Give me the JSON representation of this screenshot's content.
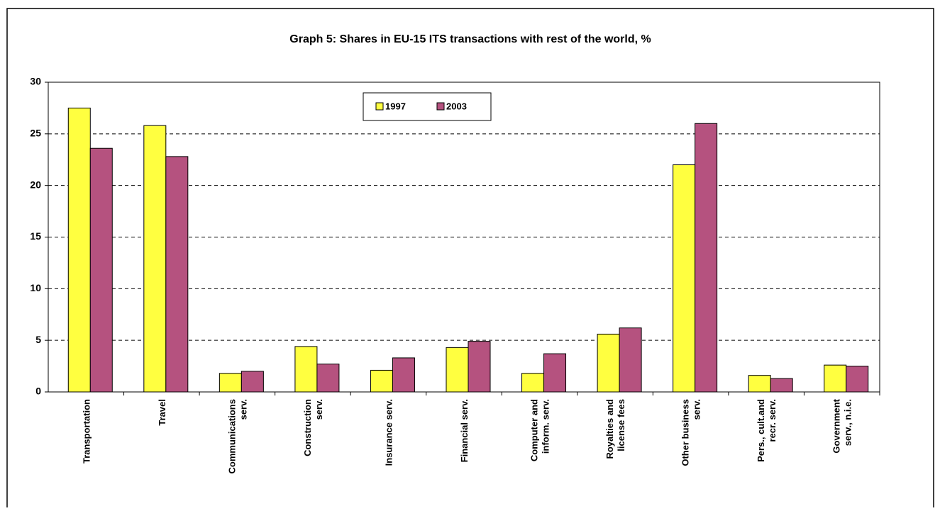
{
  "chart_data": {
    "type": "bar",
    "title": "Graph 5: Shares in EU-15 ITS transactions with rest of the world, %",
    "categories": [
      [
        "Transportation"
      ],
      [
        "Travel"
      ],
      [
        "Communications",
        "serv."
      ],
      [
        "Construction",
        "serv."
      ],
      [
        "Insurance serv."
      ],
      [
        "Financial serv."
      ],
      [
        "Computer and",
        "inform. serv."
      ],
      [
        "Royalties and",
        "license fees"
      ],
      [
        "Other business",
        "serv."
      ],
      [
        "Pers., cult.and",
        "recr. serv."
      ],
      [
        "Government",
        "serv., n.i.e."
      ]
    ],
    "series": [
      {
        "name": "1997",
        "color": "#ffff40",
        "values": [
          27.5,
          25.8,
          1.8,
          4.4,
          2.1,
          4.3,
          1.8,
          5.6,
          22.0,
          1.6,
          2.6
        ]
      },
      {
        "name": "2003",
        "color": "#b5527f",
        "values": [
          23.6,
          22.8,
          2.0,
          2.7,
          3.3,
          4.9,
          3.7,
          6.2,
          26.0,
          1.3,
          2.5
        ]
      }
    ],
    "ylim": [
      0,
      30
    ],
    "yticks": [
      0,
      5,
      10,
      15,
      20,
      25,
      30
    ],
    "grid": true,
    "legend": "top"
  }
}
